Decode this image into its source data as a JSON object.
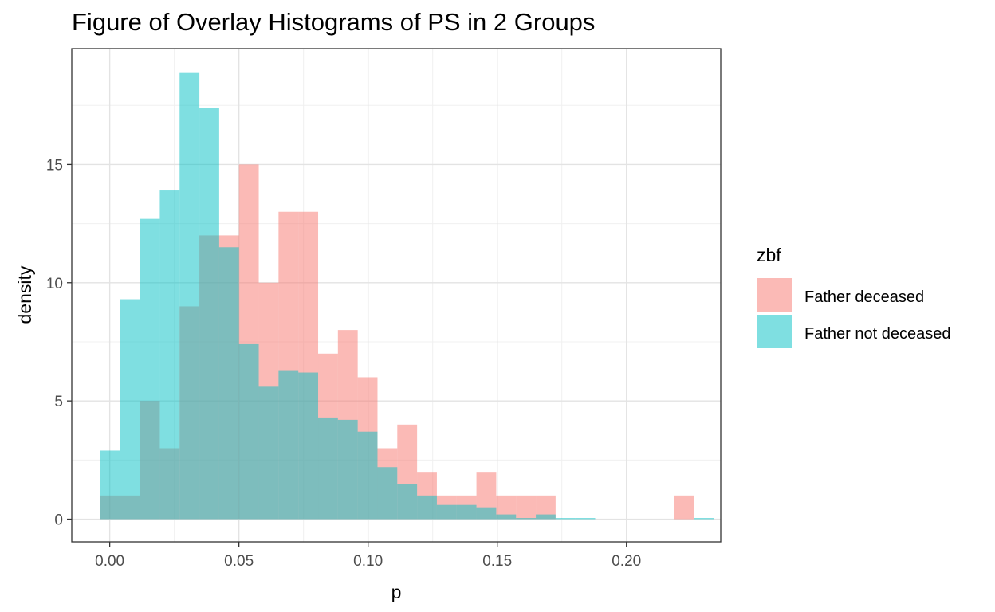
{
  "chart_data": {
    "type": "bar",
    "title": "Figure of Overlay Histograms of PS in 2 Groups",
    "xlabel": "p",
    "ylabel": "density",
    "xlim": [
      -0.0147,
      0.2365
    ],
    "ylim": [
      -0.96,
      19.9
    ],
    "x_ticks": [
      0,
      0.05,
      0.1,
      0.15,
      0.2
    ],
    "x_tick_labels": [
      "0.00",
      "0.05",
      "0.10",
      "0.15",
      "0.20"
    ],
    "y_ticks": [
      0,
      5,
      10,
      15
    ],
    "y_tick_labels": [
      "0",
      "5",
      "10",
      "15"
    ],
    "grid": true,
    "legend": {
      "title": "zbf",
      "position": "right"
    },
    "bin_start": -0.0036,
    "bin_width": 0.00766,
    "series": [
      {
        "name": "Father deceased",
        "color": "#F8766D",
        "values": [
          1.0,
          1.0,
          5.0,
          3.0,
          9.0,
          12.0,
          12.0,
          15.0,
          10.0,
          13.0,
          13.0,
          7.0,
          8.0,
          6.0,
          3.0,
          4.0,
          2.0,
          1.0,
          1.0,
          2.0,
          1.0,
          1.0,
          1.0,
          0.0,
          0.0,
          0.0,
          0.0,
          0.0,
          0.0,
          1.0,
          0.0
        ]
      },
      {
        "name": "Father not deceased",
        "color": "#00BFC4",
        "values": [
          2.9,
          9.3,
          12.7,
          13.9,
          18.9,
          17.4,
          11.5,
          7.4,
          5.6,
          6.3,
          6.2,
          4.3,
          4.2,
          3.7,
          2.2,
          1.5,
          1.0,
          0.6,
          0.6,
          0.5,
          0.2,
          0.05,
          0.2,
          0.05,
          0.05,
          0.0,
          0.0,
          0.0,
          0.0,
          0.0,
          0.05
        ]
      }
    ]
  }
}
